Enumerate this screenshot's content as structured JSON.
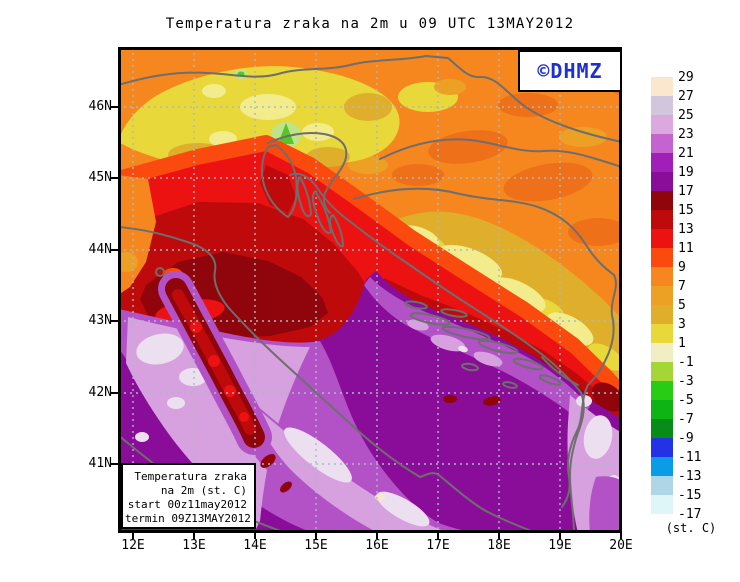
{
  "title": "Temperatura zraka na 2m u 09 UTC 13MAY2012",
  "watermark": {
    "text": "©DHMZ",
    "color": "#1F2FD4"
  },
  "info_box": {
    "lines": [
      "Temperatura zraka",
      "na 2m (st. C)",
      "start 00z11may2012",
      "termin 09Z13MAY2012"
    ]
  },
  "axes": {
    "lat": [
      "46N",
      "45N",
      "44N",
      "43N",
      "42N",
      "41N"
    ],
    "lon": [
      "12E",
      "13E",
      "14E",
      "15E",
      "16E",
      "17E",
      "18E",
      "19E",
      "20E"
    ]
  },
  "scale": {
    "unit": "(st. C)",
    "levels": [
      "29",
      "27",
      "25",
      "23",
      "21",
      "19",
      "17",
      "15",
      "13",
      "11",
      "9",
      "7",
      "5",
      "3",
      "1",
      "-1",
      "-3",
      "-5",
      "-7",
      "-9",
      "-11",
      "-13",
      "-15",
      "-17"
    ],
    "colors": [
      "#FBE7CE",
      "#D0C7DC",
      "#DCA9DF",
      "#C563D1",
      "#A21EB8",
      "#8A0D9A",
      "#90040C",
      "#BE0A0A",
      "#EC1212",
      "#FA4A0E",
      "#F6871E",
      "#ECA124",
      "#DFAF2C",
      "#E8D83A",
      "#F0EEC2",
      "#A4D636",
      "#28CC14",
      "#0EB414",
      "#088C18",
      "#2432E6",
      "#0A9CE6",
      "#AED6E6",
      "#DFF6F8",
      "#FFFFFF"
    ]
  },
  "map": {
    "palette": {
      "base_orange": "#F6871E",
      "dark_orange": "#EE7018",
      "orange_gold": "#ECA124",
      "gold": "#DFAF2C",
      "yellow": "#E8D83A",
      "pale_yellow": "#F2EC8C",
      "pale_green": "#BFE389",
      "green": "#54C628",
      "orange_red": "#FA4A0E",
      "red": "#EC1212",
      "dark_red": "#BE0A0A",
      "maroon": "#90040C",
      "sea_purple": "#8A0D9A",
      "medium_purple": "#B252C6",
      "light_orchid": "#D7A0DE",
      "pale_lavender": "#ECDFF0",
      "cream": "#FBE7CE",
      "gridline": "#A9BAC2",
      "coastline": "#6E6E6E"
    }
  }
}
